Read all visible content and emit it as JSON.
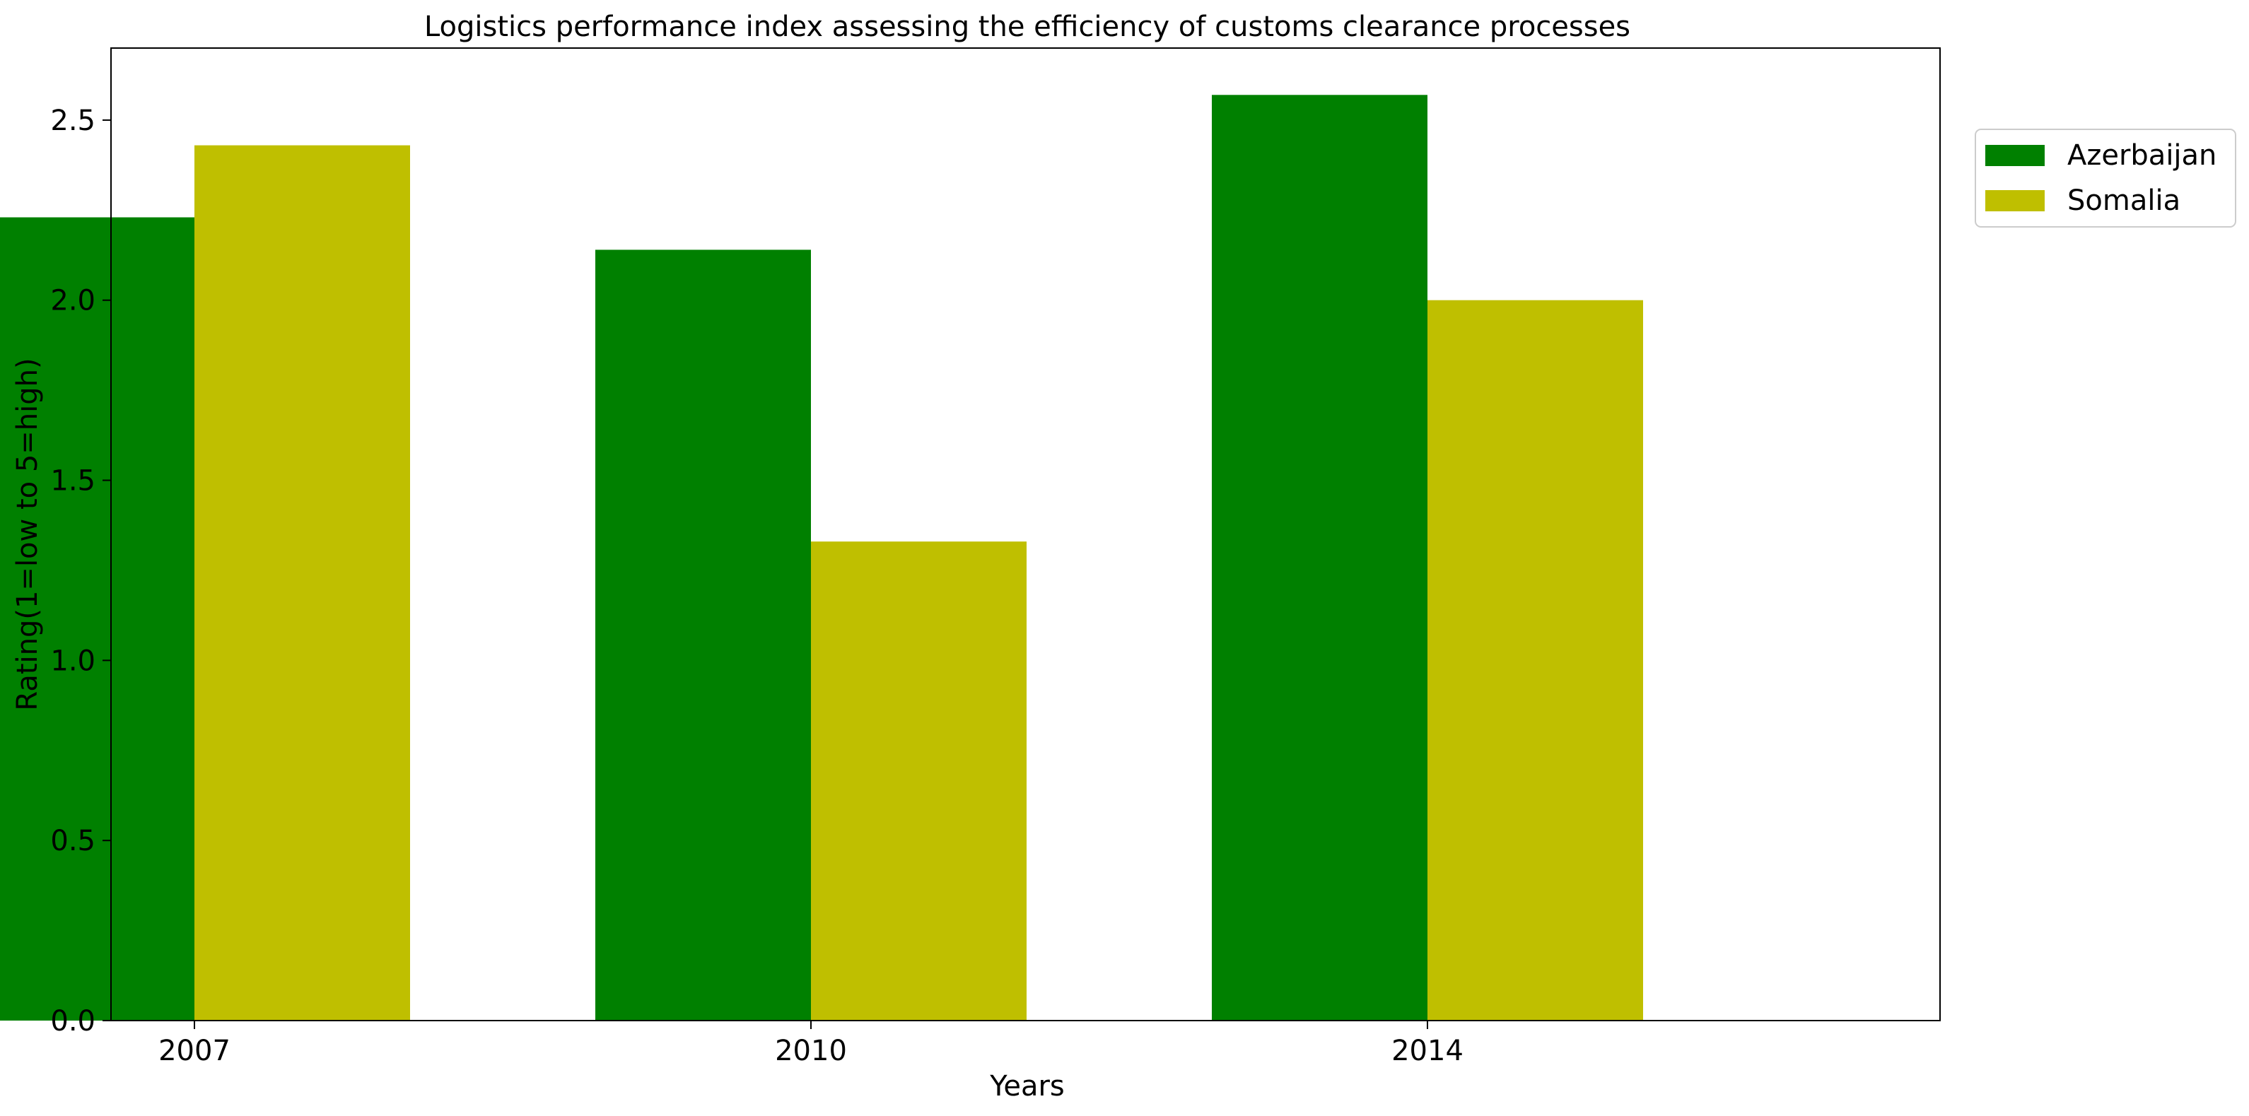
{
  "chart_data": {
    "type": "bar",
    "title": "Logistics performance index assessing the efficiency of customs clearance processes",
    "xlabel": "Years",
    "ylabel": "Rating(1=low to 5=high)",
    "categories": [
      "2007",
      "2010",
      "2014"
    ],
    "series": [
      {
        "name": "Azerbaijan",
        "values": [
          2.23,
          2.14,
          2.57
        ],
        "color": "#008000"
      },
      {
        "name": "Somalia",
        "values": [
          2.43,
          1.33,
          2.0
        ],
        "color": "#bfbf00"
      }
    ],
    "ylim": [
      0,
      2.7
    ],
    "yticks": [
      "0.0",
      "0.5",
      "1.0",
      "1.5",
      "2.0",
      "2.5"
    ],
    "grid": false,
    "legend_position": "upper-right-outside"
  }
}
